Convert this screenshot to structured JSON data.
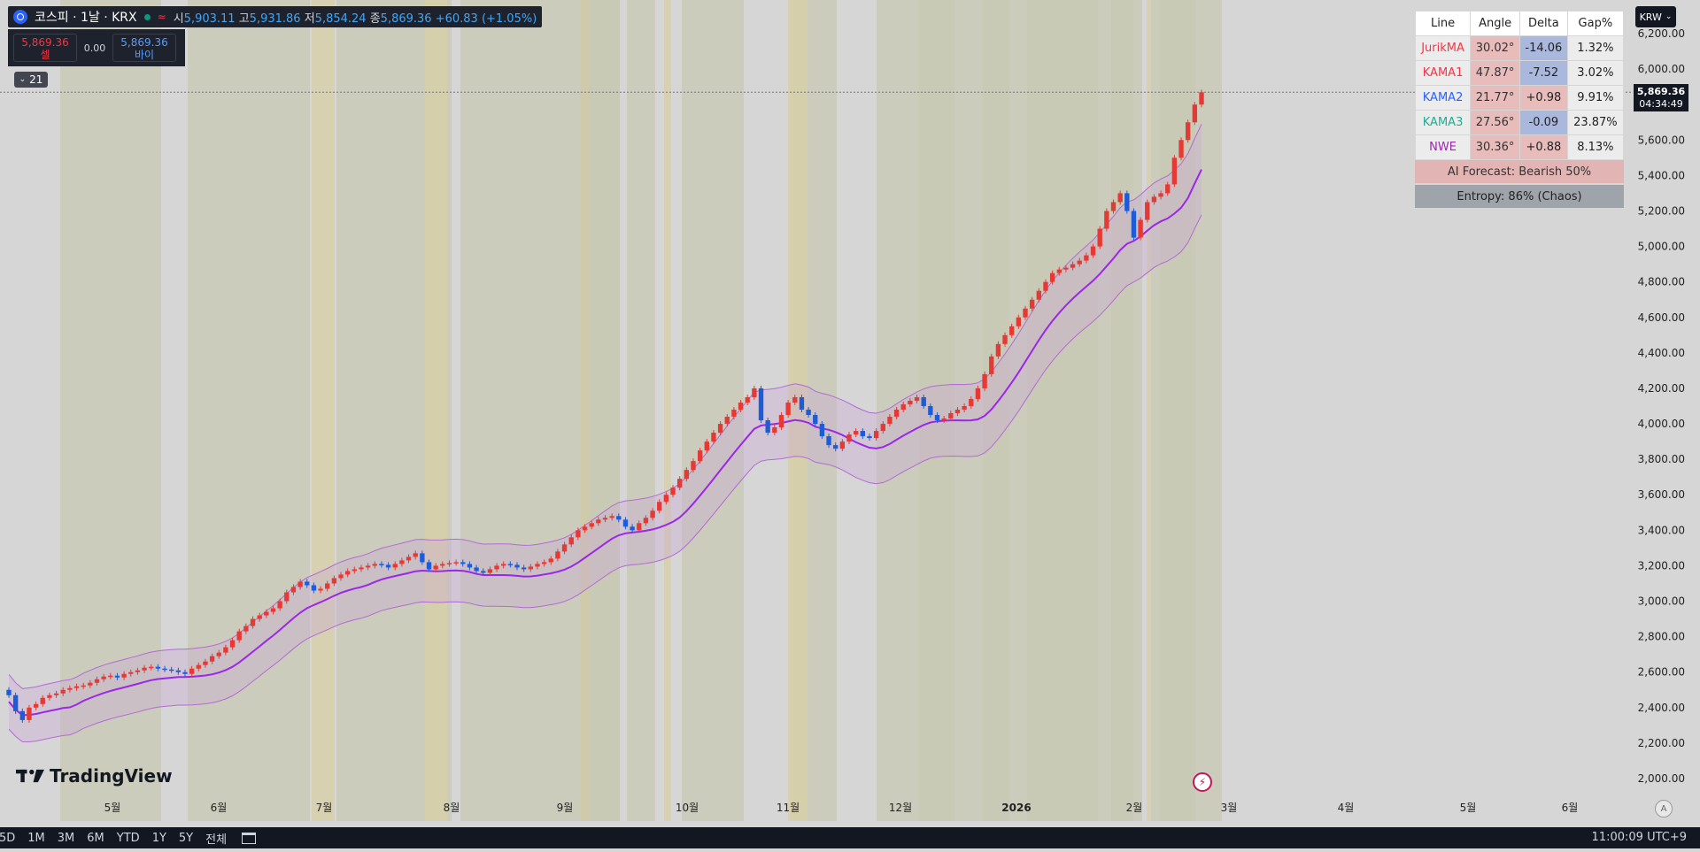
{
  "header": {
    "symbol": "코스피 · 1날 · KRX",
    "open_label": "시",
    "open": "5,903.11",
    "high_label": "고",
    "high": "5,931.86",
    "low_label": "저",
    "low": "5,854.24",
    "close_label": "종",
    "close": "5,869.36",
    "change": "+60.83 (+1.05%)"
  },
  "trade": {
    "sell_price": "5,869.36",
    "sell_label": "셀",
    "spread": "0.00",
    "buy_price": "5,869.36",
    "buy_label": "바이"
  },
  "collapse_count": "21",
  "currency": "KRW",
  "price_tag": {
    "price": "5,869.36",
    "countdown": "04:34:49"
  },
  "indicator_table": {
    "headers": [
      "Line",
      "Angle",
      "Delta",
      "Gap%"
    ],
    "rows": [
      {
        "name": "JurikMA",
        "angle": "30.02°",
        "delta": "-14.06",
        "gap": "1.32%",
        "color": "#f23645"
      },
      {
        "name": "KAMA1",
        "angle": "47.87°",
        "delta": "-7.52",
        "gap": "3.02%",
        "color": "#f23645"
      },
      {
        "name": "KAMA2",
        "angle": "21.77°",
        "delta": "+0.98",
        "gap": "9.91%",
        "color": "#2962ff"
      },
      {
        "name": "KAMA3",
        "angle": "27.56°",
        "delta": "-0.09",
        "gap": "23.87%",
        "color": "#22ab94"
      },
      {
        "name": "NWE",
        "angle": "30.36°",
        "delta": "+0.88",
        "gap": "8.13%",
        "color": "#9c27b0"
      }
    ],
    "forecast": "AI Forecast: Bearish 50%",
    "entropy": "Entropy: 86% (Chaos)"
  },
  "branding": "TradingView",
  "bottom_bar": {
    "ranges": [
      "5D",
      "1M",
      "3M",
      "6M",
      "YTD",
      "1Y",
      "5Y",
      "전체"
    ],
    "clock": "11:00:09 UTC+9",
    "auto_label": "A"
  },
  "chart_data": {
    "type": "candlestick",
    "y_axis": {
      "min": 2000,
      "max": 6200,
      "ticks": [
        "2,000.00",
        "2,200.00",
        "2,400.00",
        "2,600.00",
        "2,800.00",
        "3,000.00",
        "3,200.00",
        "3,400.00",
        "3,600.00",
        "3,800.00",
        "4,000.00",
        "4,200.00",
        "4,400.00",
        "4,600.00",
        "4,800.00",
        "5,000.00",
        "5,200.00",
        "5,400.00",
        "5,600.00",
        "5,800.00",
        "6,000.00",
        "6,200.00"
      ]
    },
    "x_axis": {
      "ticks": [
        "5월",
        "6월",
        "7월",
        "8월",
        "9월",
        "10월",
        "11월",
        "12월",
        "2026",
        "2월",
        "3월",
        "4월",
        "5월",
        "6월"
      ]
    },
    "closes": [
      2470,
      2380,
      2330,
      2400,
      2420,
      2455,
      2470,
      2480,
      2500,
      2510,
      2520,
      2525,
      2540,
      2560,
      2575,
      2580,
      2570,
      2590,
      2600,
      2610,
      2625,
      2630,
      2620,
      2615,
      2610,
      2600,
      2590,
      2620,
      2640,
      2660,
      2690,
      2710,
      2740,
      2780,
      2830,
      2860,
      2900,
      2920,
      2940,
      2960,
      3000,
      3050,
      3080,
      3110,
      3090,
      3060,
      3070,
      3100,
      3130,
      3150,
      3170,
      3180,
      3190,
      3200,
      3210,
      3205,
      3190,
      3210,
      3230,
      3250,
      3270,
      3220,
      3180,
      3200,
      3210,
      3215,
      3220,
      3210,
      3190,
      3170,
      3160,
      3180,
      3200,
      3210,
      3205,
      3190,
      3180,
      3195,
      3210,
      3220,
      3240,
      3280,
      3320,
      3360,
      3400,
      3420,
      3440,
      3460,
      3470,
      3480,
      3460,
      3420,
      3400,
      3440,
      3470,
      3510,
      3560,
      3600,
      3640,
      3690,
      3740,
      3790,
      3850,
      3900,
      3950,
      4000,
      4040,
      4080,
      4120,
      4150,
      4200,
      4020,
      3950,
      3980,
      4050,
      4120,
      4150,
      4080,
      4050,
      4000,
      3930,
      3880,
      3860,
      3900,
      3940,
      3960,
      3930,
      3920,
      3960,
      4000,
      4040,
      4080,
      4110,
      4130,
      4150,
      4100,
      4050,
      4020,
      4030,
      4060,
      4080,
      4100,
      4140,
      4200,
      4280,
      4380,
      4450,
      4500,
      4550,
      4600,
      4650,
      4700,
      4750,
      4800,
      4850,
      4870,
      4880,
      4900,
      4920,
      4950,
      5000,
      5100,
      5200,
      5250,
      5300,
      5200,
      5050,
      5150,
      5250,
      5280,
      5300,
      5350,
      5500,
      5600,
      5700,
      5800,
      5869.36
    ],
    "bands": {
      "center": "NWE",
      "upper": "NWE upper",
      "lower": "NWE lower"
    }
  }
}
